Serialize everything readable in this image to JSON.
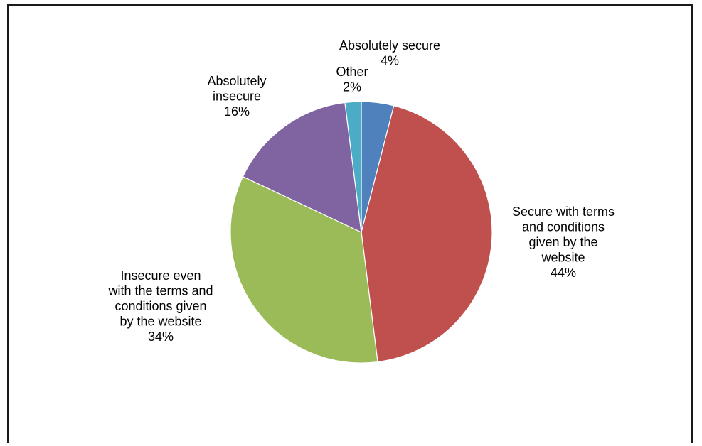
{
  "chart_data": {
    "type": "pie",
    "title": "",
    "start_angle_deg": 0,
    "direction": "clockwise",
    "slices": [
      {
        "label": "Absolutely secure",
        "value": 4,
        "pct_label": "4%",
        "color": "#4F81BD",
        "lines": [
          "Absolutely secure",
          "4%"
        ]
      },
      {
        "label": "Secure with terms and conditions given by the website",
        "value": 44,
        "pct_label": "44%",
        "color": "#C0504D",
        "lines": [
          "Secure with terms",
          "and conditions",
          "given by the",
          "website",
          "44%"
        ]
      },
      {
        "label": "Insecure even with the terms and conditions given by the website",
        "value": 34,
        "pct_label": "34%",
        "color": "#9BBB59",
        "lines": [
          "Insecure even",
          "with the terms and",
          "conditions given",
          "by the website",
          "34%"
        ]
      },
      {
        "label": "Absolutely insecure",
        "value": 16,
        "pct_label": "16%",
        "color": "#8064A2",
        "lines": [
          "Absolutely",
          "insecure",
          "16%"
        ]
      },
      {
        "label": "Other",
        "value": 2,
        "pct_label": "2%",
        "color": "#4BACC6",
        "lines": [
          "Other",
          "2%"
        ]
      }
    ],
    "legend": "none",
    "data_labels": "outside"
  }
}
